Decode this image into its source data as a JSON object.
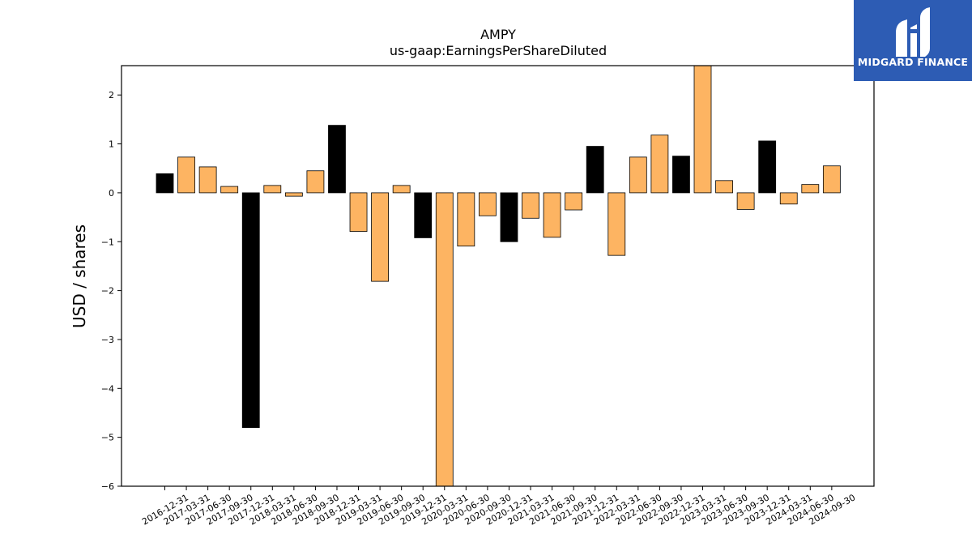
{
  "chart_data": {
    "type": "bar",
    "title": "AMPY",
    "subtitle": "us-gaap:EarningsPerShareDiluted",
    "xlabel": "",
    "ylabel": "USD / shares",
    "ylim": [
      -6,
      2.6
    ],
    "yticks": [
      -6,
      -5,
      -4,
      -3,
      -2,
      -1,
      0,
      1,
      2
    ],
    "grid": false,
    "colors": {
      "annual": "#000000",
      "quarterly": "#fdb462"
    },
    "categories": [
      "2016-12-31",
      "2017-03-31",
      "2017-06-30",
      "2017-09-30",
      "2017-12-31",
      "2018-03-31",
      "2018-06-30",
      "2018-09-30",
      "2018-12-31",
      "2019-03-31",
      "2019-06-30",
      "2019-09-30",
      "2019-12-31",
      "2020-03-31",
      "2020-06-30",
      "2020-09-30",
      "2020-12-31",
      "2021-03-31",
      "2021-06-30",
      "2021-09-30",
      "2021-12-31",
      "2022-03-31",
      "2022-06-30",
      "2022-09-30",
      "2022-12-31",
      "2023-03-31",
      "2023-06-30",
      "2023-09-30",
      "2023-12-31",
      "2024-03-31",
      "2024-06-30",
      "2024-09-30"
    ],
    "values": [
      0.39,
      0.73,
      0.53,
      0.13,
      -4.8,
      0.15,
      -0.07,
      0.45,
      1.38,
      -0.79,
      -1.81,
      0.15,
      -0.92,
      -6.0,
      -1.09,
      -0.47,
      -1.0,
      -0.52,
      -0.91,
      -0.35,
      0.95,
      -1.28,
      0.73,
      1.18,
      0.75,
      2.6,
      0.25,
      -0.34,
      1.06,
      -0.23,
      0.17,
      0.55
    ],
    "kinds": [
      "annual",
      "quarterly",
      "quarterly",
      "quarterly",
      "annual",
      "quarterly",
      "quarterly",
      "quarterly",
      "annual",
      "quarterly",
      "quarterly",
      "quarterly",
      "annual",
      "quarterly",
      "quarterly",
      "quarterly",
      "annual",
      "quarterly",
      "quarterly",
      "quarterly",
      "annual",
      "quarterly",
      "quarterly",
      "quarterly",
      "annual",
      "quarterly",
      "quarterly",
      "quarterly",
      "annual",
      "quarterly",
      "quarterly",
      "quarterly"
    ]
  },
  "logo": {
    "text": "MIDGARD FINANCE",
    "bg_color": "#2d5cb4"
  }
}
